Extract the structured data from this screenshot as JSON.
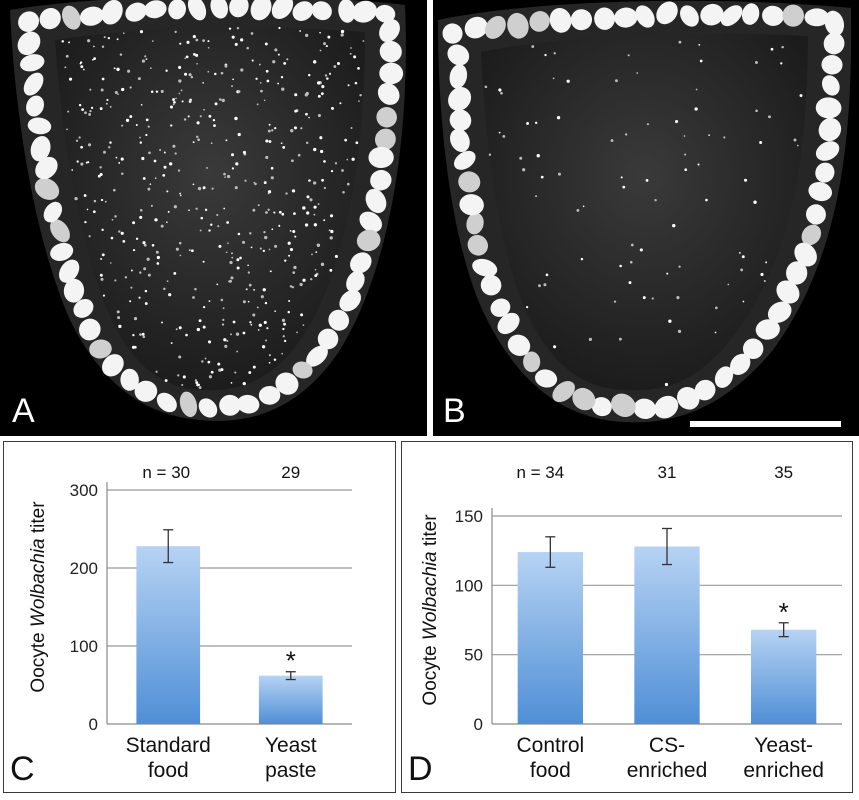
{
  "micrographs": [
    {
      "label": "A",
      "density": 520,
      "scale_bar": false
    },
    {
      "label": "B",
      "density": 90,
      "scale_bar": true
    }
  ],
  "chart_data": [
    {
      "panel": "C",
      "type": "bar",
      "ylabel_prefix": "Oocyte ",
      "ylabel_italic": "Wolbachia",
      "ylabel_suffix": " titer",
      "ylim": [
        0,
        300
      ],
      "yticks": [
        0,
        100,
        200,
        300
      ],
      "grid": true,
      "n_labels": [
        "n = 30",
        "29"
      ],
      "categories": [
        [
          "Standard",
          "food"
        ],
        [
          "Yeast",
          "paste"
        ]
      ],
      "values": [
        228,
        62
      ],
      "errors": [
        21,
        5
      ],
      "significance": [
        "",
        "*"
      ]
    },
    {
      "panel": "D",
      "type": "bar",
      "ylabel_prefix": "Oocyte ",
      "ylabel_italic": "Wolbachia",
      "ylabel_suffix": " titer",
      "ylim": [
        0,
        150
      ],
      "yticks": [
        0,
        50,
        100,
        150
      ],
      "grid": true,
      "n_labels": [
        "n =  34",
        "31",
        "35"
      ],
      "categories": [
        [
          "Control",
          "food"
        ],
        [
          "CS-",
          "enriched"
        ],
        [
          "Yeast-",
          "enriched"
        ]
      ],
      "values": [
        124,
        128,
        68
      ],
      "errors": [
        11,
        13,
        5
      ],
      "significance": [
        "",
        "",
        "*"
      ]
    }
  ]
}
